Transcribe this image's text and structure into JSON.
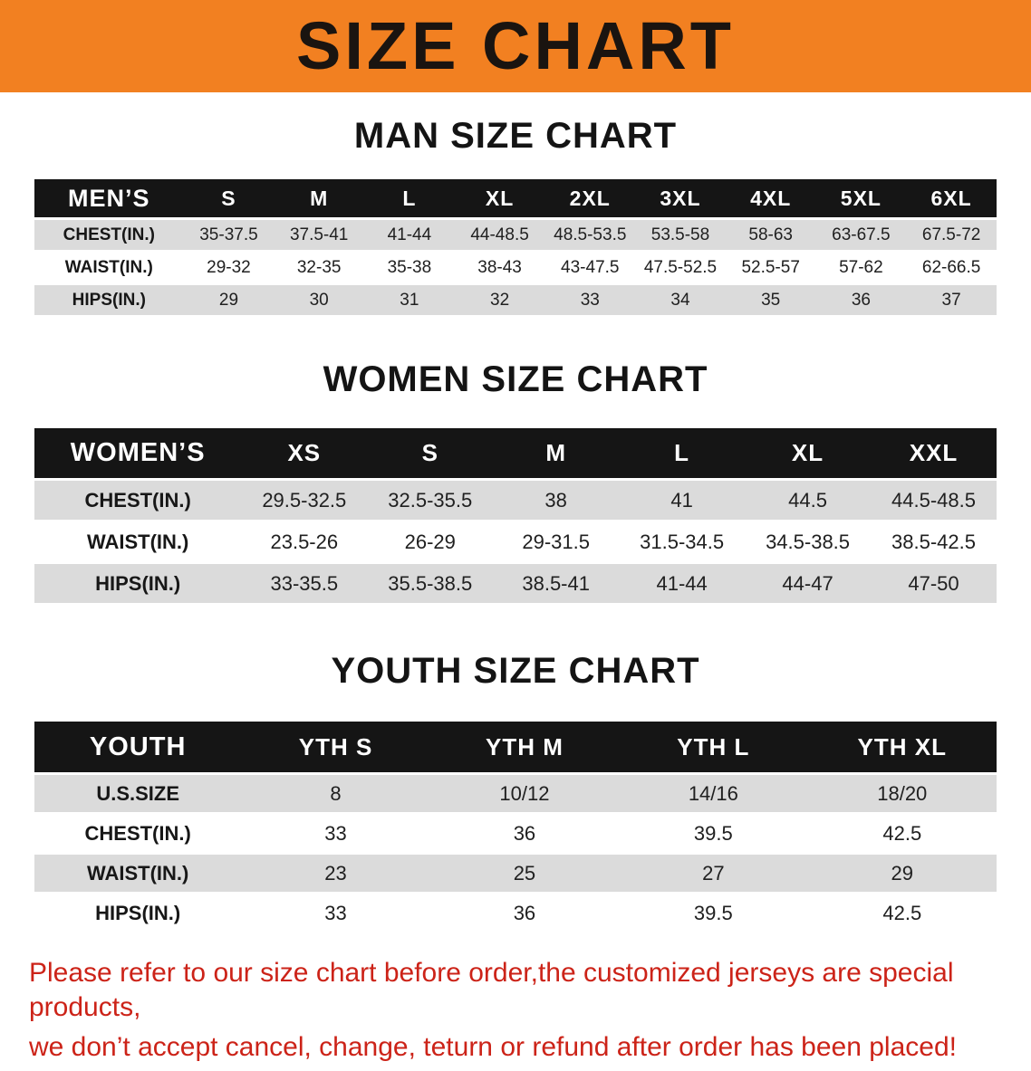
{
  "banner": {
    "title": "SIZE CHART",
    "bg_color": "#F28021",
    "text_color": "#1A1410"
  },
  "chart_data": [
    {
      "type": "table",
      "title": "MAN SIZE CHART",
      "columns": [
        "MEN’S",
        "S",
        "M",
        "L",
        "XL",
        "2XL",
        "3XL",
        "4XL",
        "5XL",
        "6XL"
      ],
      "rows": [
        [
          "CHEST(IN.)",
          "35-37.5",
          "37.5-41",
          "41-44",
          "44-48.5",
          "48.5-53.5",
          "53.5-58",
          "58-63",
          "63-67.5",
          "67.5-72"
        ],
        [
          "WAIST(IN.)",
          "29-32",
          "32-35",
          "35-38",
          "38-43",
          "43-47.5",
          "47.5-52.5",
          "52.5-57",
          "57-62",
          "62-66.5"
        ],
        [
          "HIPS(IN.)",
          "29",
          "30",
          "31",
          "32",
          "33",
          "34",
          "35",
          "36",
          "37"
        ]
      ]
    },
    {
      "type": "table",
      "title": "WOMEN SIZE CHART",
      "columns": [
        "WOMEN’S",
        "XS",
        "S",
        "M",
        "L",
        "XL",
        "XXL"
      ],
      "rows": [
        [
          "CHEST(IN.)",
          "29.5-32.5",
          "32.5-35.5",
          "38",
          "41",
          "44.5",
          "44.5-48.5"
        ],
        [
          "WAIST(IN.)",
          "23.5-26",
          "26-29",
          "29-31.5",
          "31.5-34.5",
          "34.5-38.5",
          "38.5-42.5"
        ],
        [
          "HIPS(IN.)",
          "33-35.5",
          "35.5-38.5",
          "38.5-41",
          "41-44",
          "44-47",
          "47-50"
        ]
      ]
    },
    {
      "type": "table",
      "title": "YOUTH SIZE CHART",
      "columns": [
        "YOUTH",
        "YTH S",
        "YTH M",
        "YTH L",
        "YTH XL"
      ],
      "rows": [
        [
          "U.S.SIZE",
          "8",
          "10/12",
          "14/16",
          "18/20"
        ],
        [
          "CHEST(IN.)",
          "33",
          "36",
          "39.5",
          "42.5"
        ],
        [
          "WAIST(IN.)",
          "23",
          "25",
          "27",
          "29"
        ],
        [
          "HIPS(IN.)",
          "33",
          "36",
          "39.5",
          "42.5"
        ]
      ]
    }
  ],
  "footnote": {
    "color": "#CC2318",
    "lines": [
      "Please refer to our size chart before order,the customized jerseys are special products,",
      "we don’t accept cancel, change, teturn or refund after order has been placed!"
    ]
  }
}
